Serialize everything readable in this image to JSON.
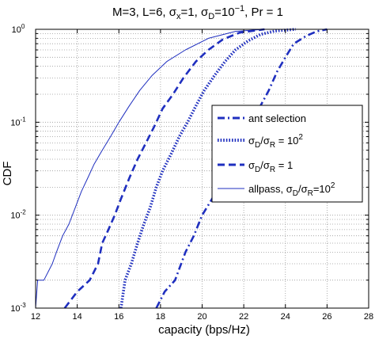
{
  "chart_data": {
    "type": "line",
    "title": "M=3, L=6, σx=1, σD=10−1, Pr = 1",
    "title_parts": {
      "a": "M=3, L=6, σ",
      "sub_x": "x",
      "b": "=1, σ",
      "sub_D": "D",
      "c": "=10",
      "sup": "−1",
      "d": ", Pr = 1"
    },
    "xlabel": "capacity (bps/Hz)",
    "ylabel": "CDF",
    "xlim": [
      12,
      28
    ],
    "ylim": [
      0.001,
      1
    ],
    "yscale": "log",
    "grid": true,
    "legend_position": "right-center",
    "xticks": [
      "12",
      "14",
      "16",
      "18",
      "20",
      "22",
      "24",
      "26",
      "28"
    ],
    "ytick_labels": [
      {
        "base": "10",
        "exp": "-3"
      },
      {
        "base": "10",
        "exp": "-2"
      },
      {
        "base": "10",
        "exp": "-1"
      },
      {
        "base": "10",
        "exp": "0"
      }
    ],
    "series": [
      {
        "name": "ant selection",
        "legend_parts": {
          "main": "ant selection"
        },
        "style": "dashdot",
        "color": "#1f2fbf",
        "x": [
          17.8,
          18.2,
          18.7,
          19.2,
          19.6,
          20.0,
          20.4,
          20.8,
          21.2,
          21.6,
          22.0,
          22.4,
          22.8,
          23.2,
          23.6,
          24.0,
          24.4,
          25.0,
          25.5,
          26.0
        ],
        "y": [
          0.001,
          0.0015,
          0.002,
          0.004,
          0.006,
          0.01,
          0.014,
          0.02,
          0.03,
          0.05,
          0.07,
          0.1,
          0.15,
          0.22,
          0.35,
          0.5,
          0.7,
          0.85,
          0.95,
          1.0
        ]
      },
      {
        "name": "σD/σR = 10^2",
        "legend_parts": {
          "s1": "σ",
          "sub1": "D",
          "mid": "/σ",
          "sub2": "R",
          "rest": " = 10",
          "sup": "2"
        },
        "style": "dotted",
        "color": "#1f2fbf",
        "x": [
          16.1,
          16.3,
          16.6,
          16.9,
          17.2,
          17.5,
          17.8,
          18.1,
          18.5,
          18.9,
          19.3,
          19.7,
          20.1,
          20.6,
          21.1,
          21.6,
          22.2,
          22.8,
          23.5,
          24.5
        ],
        "y": [
          0.001,
          0.002,
          0.003,
          0.005,
          0.008,
          0.012,
          0.02,
          0.03,
          0.045,
          0.07,
          0.1,
          0.15,
          0.22,
          0.32,
          0.45,
          0.6,
          0.75,
          0.88,
          0.96,
          1.0
        ]
      },
      {
        "name": "σD/σR = 1",
        "legend_parts": {
          "s1": "σ",
          "sub1": "D",
          "mid": "/σ",
          "sub2": "R",
          "rest": " = 1"
        },
        "style": "dashed",
        "color": "#1f2fbf",
        "x": [
          13.4,
          14.0,
          14.6,
          15.0,
          15.2,
          15.5,
          15.8,
          16.1,
          16.5,
          16.9,
          17.3,
          17.7,
          18.1,
          18.6,
          19.1,
          19.7,
          20.3,
          21.0,
          21.8,
          23.0
        ],
        "y": [
          0.001,
          0.0015,
          0.002,
          0.003,
          0.005,
          0.007,
          0.01,
          0.015,
          0.025,
          0.04,
          0.06,
          0.09,
          0.14,
          0.2,
          0.3,
          0.45,
          0.6,
          0.78,
          0.92,
          1.0
        ]
      },
      {
        "name": "allpass, σD/σR=10^2",
        "legend_parts": {
          "pre": "allpass, σ",
          "sub1": "D",
          "mid": "/σ",
          "sub2": "R",
          "rest": "=10",
          "sup": "2"
        },
        "style": "solid",
        "color": "#1f2fbf",
        "x": [
          12.0,
          12.1,
          12.4,
          12.8,
          13.0,
          13.3,
          13.6,
          13.9,
          14.2,
          14.5,
          14.8,
          15.2,
          15.6,
          16.0,
          16.5,
          17.0,
          17.6,
          18.3,
          19.2,
          20.3,
          21.6,
          23.0
        ],
        "y": [
          0.001,
          0.002,
          0.002,
          0.003,
          0.004,
          0.006,
          0.008,
          0.012,
          0.018,
          0.025,
          0.035,
          0.05,
          0.07,
          0.1,
          0.15,
          0.22,
          0.32,
          0.45,
          0.6,
          0.8,
          0.95,
          1.0
        ]
      }
    ]
  }
}
